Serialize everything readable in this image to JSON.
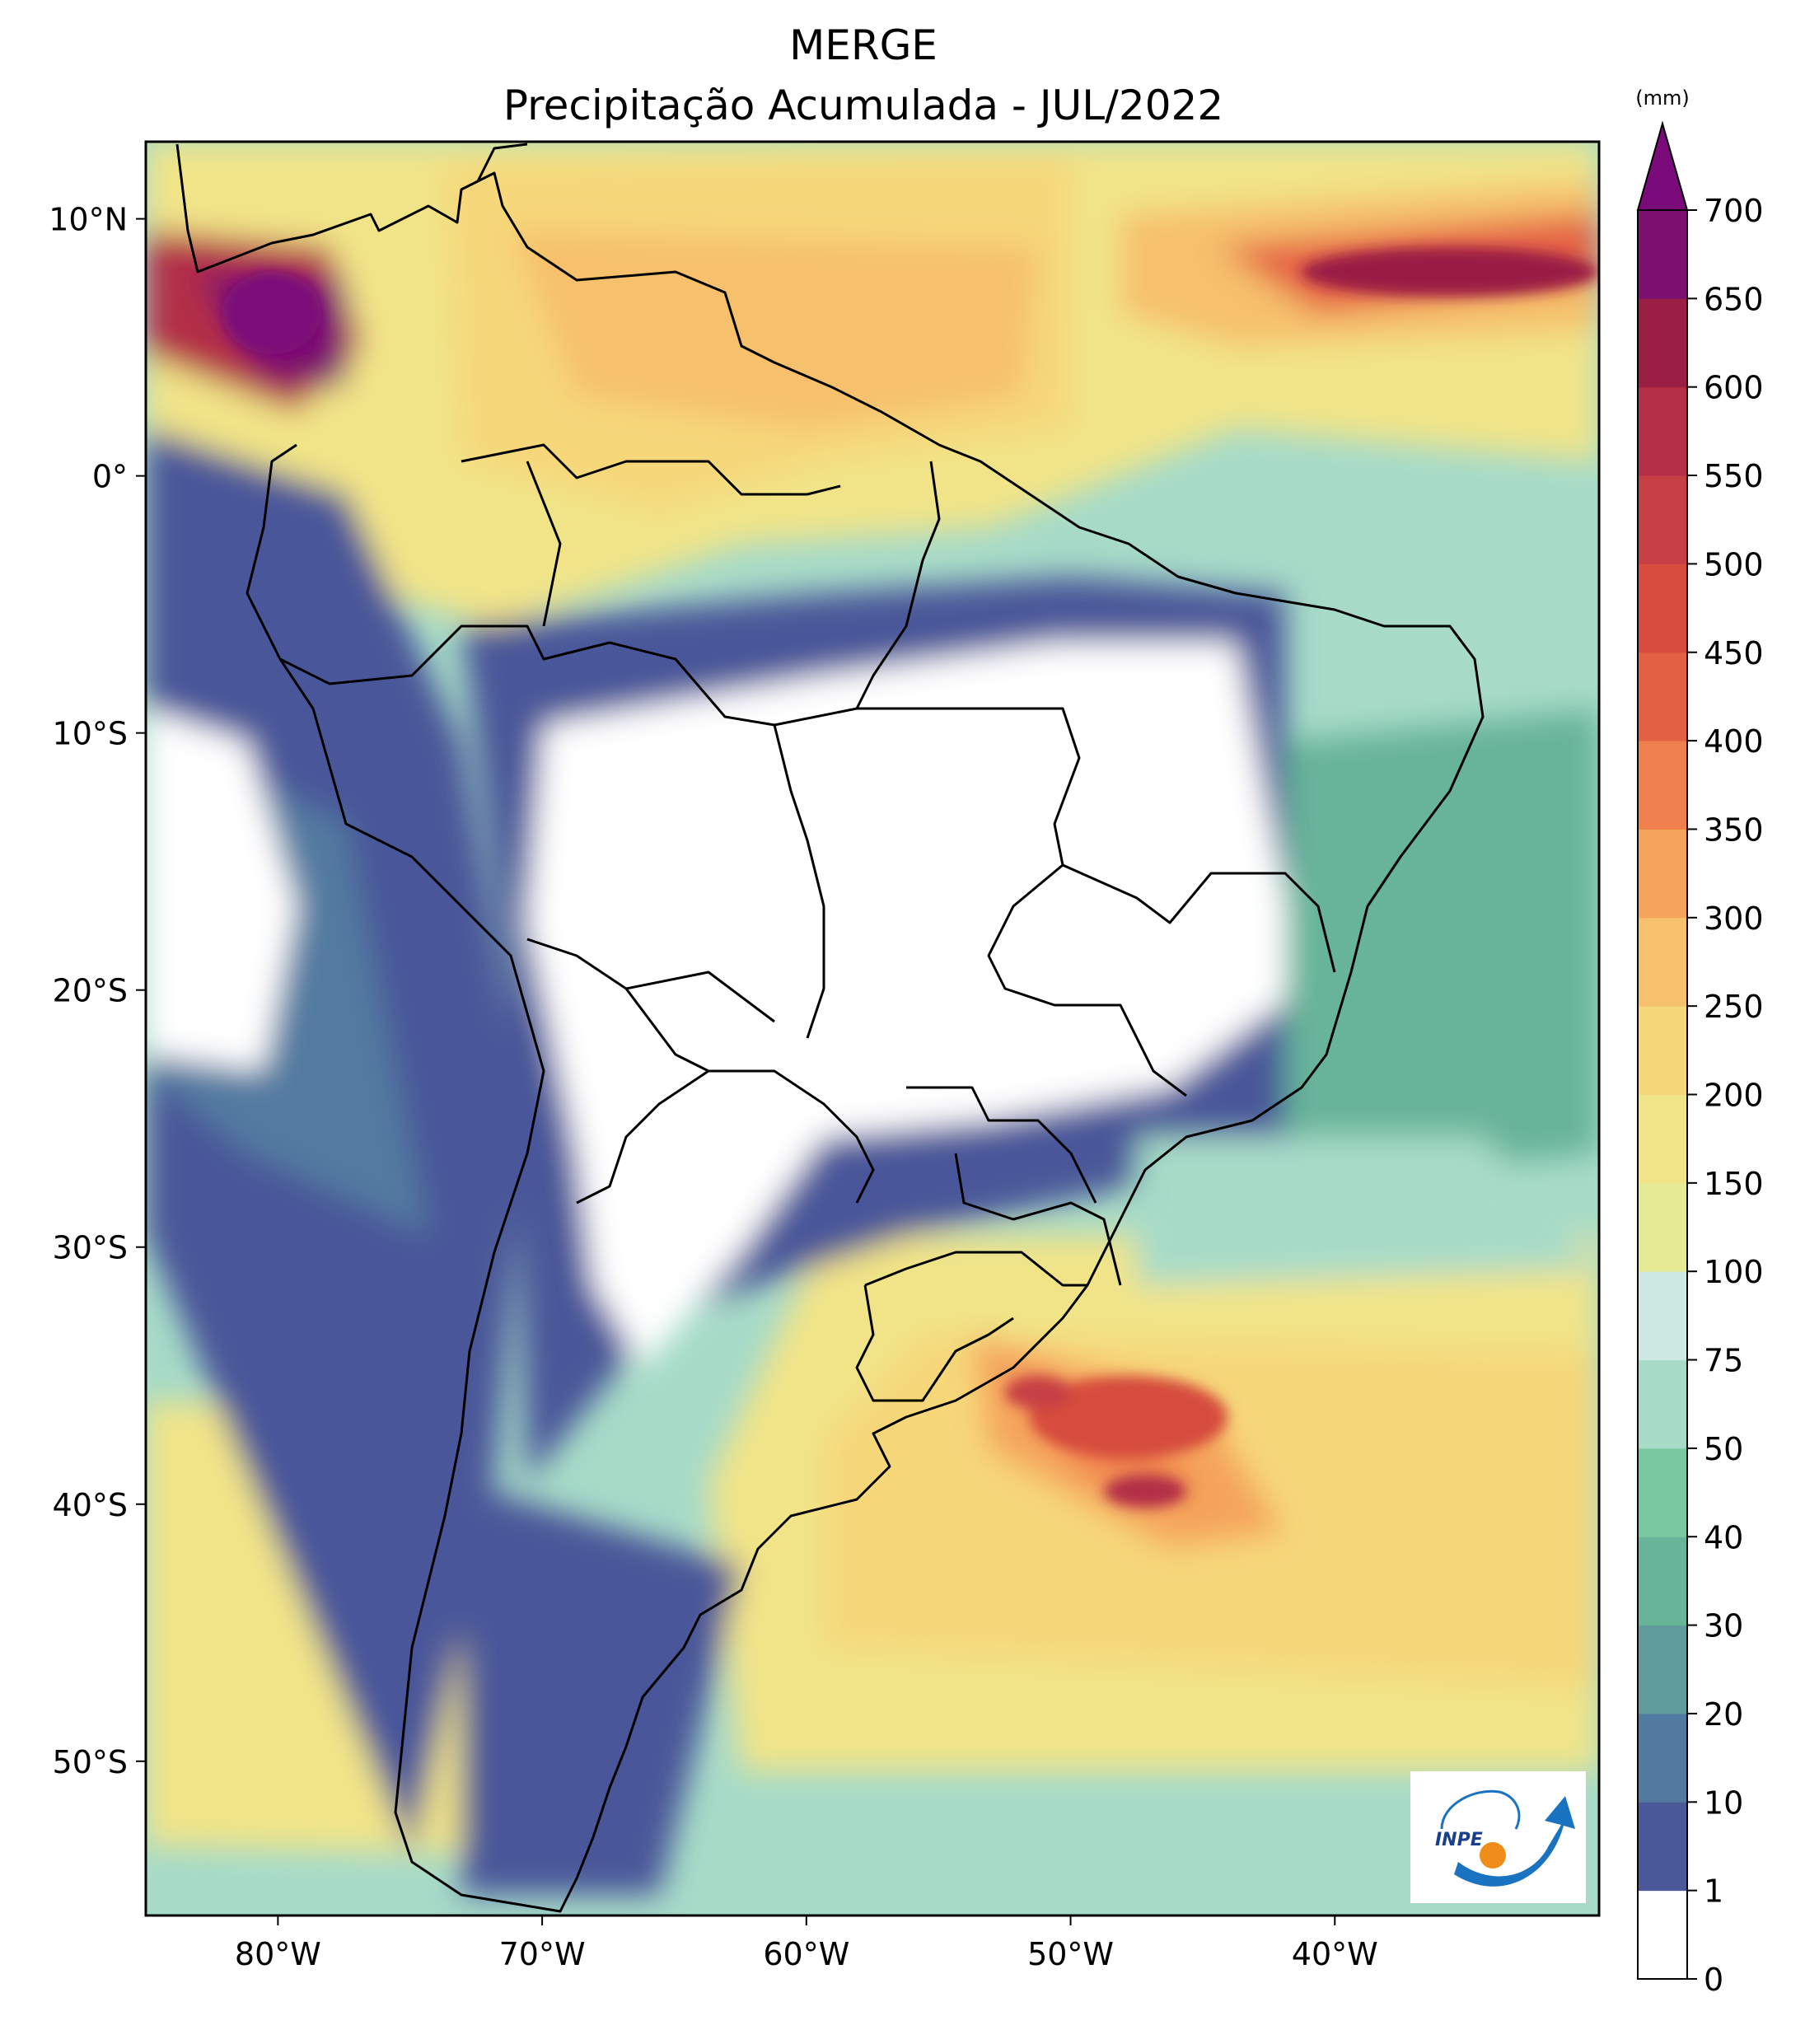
{
  "title": {
    "line1": "MERGE",
    "line2": "Precipitação Acumulada - JUL/2022"
  },
  "map": {
    "extent": {
      "lon": [
        -85,
        -30
      ],
      "lat": [
        -56,
        13
      ]
    },
    "lat_ticks": [
      {
        "value": 10,
        "label": "10°N"
      },
      {
        "value": 0,
        "label": "0°"
      },
      {
        "value": -10,
        "label": "10°S"
      },
      {
        "value": -20,
        "label": "20°S"
      },
      {
        "value": -30,
        "label": "30°S"
      },
      {
        "value": -40,
        "label": "40°S"
      },
      {
        "value": -50,
        "label": "50°S"
      }
    ],
    "lon_ticks": [
      {
        "value": -80,
        "label": "80°W"
      },
      {
        "value": -70,
        "label": "70°W"
      },
      {
        "value": -60,
        "label": "60°W"
      },
      {
        "value": -50,
        "label": "50°W"
      },
      {
        "value": -40,
        "label": "40°W"
      }
    ],
    "logo": {
      "text": "INPE"
    }
  },
  "colorbar": {
    "unit": "(mm)",
    "levels": [
      "0",
      "1",
      "10",
      "20",
      "30",
      "40",
      "50",
      "75",
      "100",
      "150",
      "200",
      "250",
      "300",
      "350",
      "400",
      "450",
      "500",
      "550",
      "600",
      "650",
      "700"
    ],
    "colors": [
      "#ffffff",
      "#4a5799",
      "#527aa0",
      "#5e9b9a",
      "#68b49a",
      "#7ac8a2",
      "#a7dbc8",
      "#cde7e2",
      "#e7ea94",
      "#f1e488",
      "#f6d77a",
      "#f6c06c",
      "#f5a45c",
      "#ef7f4c",
      "#e46044",
      "#d64b3e",
      "#c63f44",
      "#b32e46",
      "#9a1f44",
      "#7b1070"
    ],
    "extend_color": "#7b0a7a"
  }
}
